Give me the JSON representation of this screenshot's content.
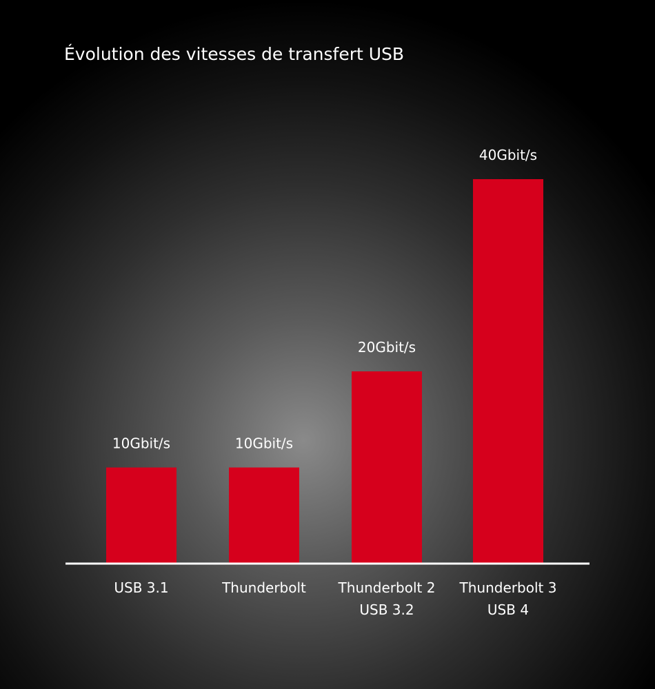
{
  "title": "Évolution des vitesses de transfert USB",
  "colors": {
    "bar": "#d6001c",
    "baseline": "#ffffff",
    "text": "#ffffff"
  },
  "chart_data": {
    "type": "bar",
    "title": "Évolution des vitesses de transfert USB",
    "categories": [
      [
        "USB 3.1"
      ],
      [
        "Thunderbolt"
      ],
      [
        "Thunderbolt 2",
        "USB 3.2"
      ],
      [
        "Thunderbolt 3",
        "USB 4"
      ]
    ],
    "values": [
      10,
      10,
      20,
      40
    ],
    "value_labels": [
      "10Gbit/s",
      "10Gbit/s",
      "20Gbit/s",
      "40Gbit/s"
    ],
    "unit": "Gbit/s",
    "ylim": [
      0,
      40
    ],
    "grid": false,
    "legend": "none"
  }
}
